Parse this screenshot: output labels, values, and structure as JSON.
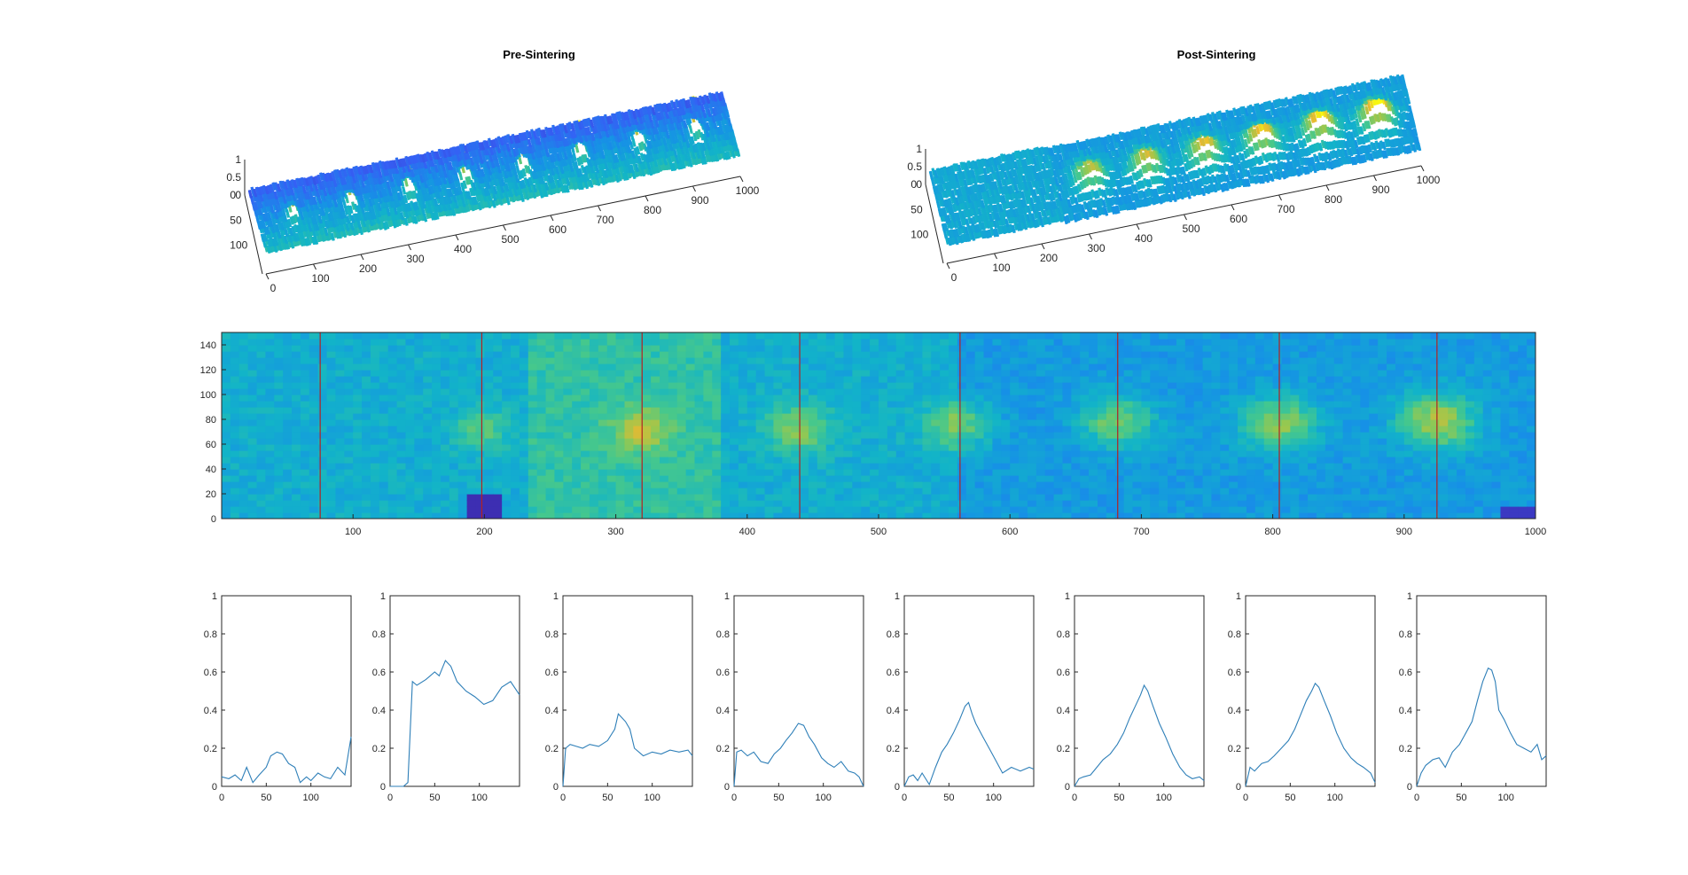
{
  "figure": {
    "titles": [
      "Pre-Sintering",
      "Post-Sintering"
    ]
  },
  "chart_data": [
    {
      "type": "surface",
      "title": "Pre-Sintering",
      "x_ticks": [
        0,
        100,
        200,
        300,
        400,
        500,
        600,
        700,
        800,
        900,
        1000
      ],
      "y_ticks": [
        0,
        50,
        100
      ],
      "z_ticks": [
        0,
        0.5,
        1
      ],
      "xlim": [
        0,
        1000
      ],
      "ylim": [
        0,
        150
      ],
      "zlim": [
        0,
        1
      ],
      "peaks_x": [
        75,
        198,
        320,
        440,
        562,
        682,
        805,
        925
      ],
      "peak_heights": [
        0.55,
        0.6,
        0.75,
        0.85,
        0.8,
        0.9,
        0.85,
        0.95
      ],
      "colormap": "parula"
    },
    {
      "type": "surface",
      "title": "Post-Sintering",
      "x_ticks": [
        0,
        100,
        200,
        300,
        400,
        500,
        600,
        700,
        800,
        900,
        1000
      ],
      "y_ticks": [
        0,
        50,
        100
      ],
      "z_ticks": [
        0,
        0.5,
        1
      ],
      "xlim": [
        0,
        1000
      ],
      "ylim": [
        0,
        150
      ],
      "zlim": [
        0,
        1
      ],
      "peaks_x": [
        320,
        440,
        562,
        682,
        805,
        925
      ],
      "peak_heights": [
        0.45,
        0.5,
        0.55,
        0.6,
        0.65,
        0.7
      ],
      "colormap": "parula"
    },
    {
      "type": "heatmap",
      "title": "",
      "xlim": [
        0,
        1000
      ],
      "ylim": [
        0,
        150
      ],
      "x_ticks": [
        100,
        200,
        300,
        400,
        500,
        600,
        700,
        800,
        900,
        1000
      ],
      "y_ticks": [
        0,
        20,
        40,
        60,
        80,
        100,
        120,
        140
      ],
      "colormap": "parula",
      "base_level": 0.42,
      "spots": [
        {
          "x": 198,
          "y": 72,
          "amp": 0.22,
          "r": 14
        },
        {
          "x": 320,
          "y": 72,
          "amp": 0.26,
          "r": 15
        },
        {
          "x": 440,
          "y": 73,
          "amp": 0.28,
          "r": 17
        },
        {
          "x": 562,
          "y": 76,
          "amp": 0.3,
          "r": 17
        },
        {
          "x": 682,
          "y": 78,
          "amp": 0.34,
          "r": 18
        },
        {
          "x": 805,
          "y": 77,
          "amp": 0.38,
          "r": 19
        },
        {
          "x": 925,
          "y": 79,
          "amp": 0.42,
          "r": 20
        }
      ],
      "vertical_lines_x": [
        75,
        198,
        320,
        440,
        562,
        682,
        805,
        925
      ],
      "line_color": "#b22222"
    },
    {
      "type": "line",
      "panels": [
        {
          "x": [
            0,
            8,
            15,
            22,
            28,
            35,
            42,
            50,
            55,
            62,
            68,
            75,
            82,
            88,
            95,
            100,
            108,
            115,
            122,
            130,
            138,
            145
          ],
          "y": [
            0.05,
            0.04,
            0.06,
            0.03,
            0.1,
            0.02,
            0.06,
            0.1,
            0.16,
            0.18,
            0.17,
            0.12,
            0.1,
            0.02,
            0.05,
            0.03,
            0.07,
            0.05,
            0.04,
            0.1,
            0.06,
            0.26
          ]
        },
        {
          "x": [
            0,
            5,
            10,
            15,
            20,
            25,
            30,
            40,
            50,
            55,
            62,
            68,
            75,
            85,
            95,
            105,
            115,
            125,
            135,
            145
          ],
          "y": [
            0,
            0,
            0,
            0,
            0.02,
            0.55,
            0.53,
            0.56,
            0.6,
            0.58,
            0.66,
            0.63,
            0.55,
            0.5,
            0.47,
            0.43,
            0.45,
            0.52,
            0.55,
            0.48
          ]
        },
        {
          "x": [
            0,
            3,
            8,
            15,
            22,
            30,
            40,
            50,
            58,
            62,
            66,
            70,
            75,
            80,
            90,
            100,
            110,
            120,
            130,
            140,
            145
          ],
          "y": [
            0,
            0.2,
            0.22,
            0.21,
            0.2,
            0.22,
            0.21,
            0.24,
            0.3,
            0.38,
            0.36,
            0.34,
            0.3,
            0.2,
            0.16,
            0.18,
            0.17,
            0.19,
            0.18,
            0.19,
            0.16
          ]
        },
        {
          "x": [
            0,
            3,
            8,
            15,
            22,
            30,
            38,
            45,
            52,
            58,
            65,
            72,
            78,
            84,
            90,
            98,
            105,
            112,
            120,
            128,
            135,
            140,
            145
          ],
          "y": [
            0,
            0.18,
            0.19,
            0.16,
            0.18,
            0.13,
            0.12,
            0.17,
            0.2,
            0.24,
            0.28,
            0.33,
            0.32,
            0.26,
            0.22,
            0.15,
            0.12,
            0.1,
            0.13,
            0.08,
            0.07,
            0.05,
            0
          ]
        },
        {
          "x": [
            0,
            5,
            10,
            15,
            20,
            28,
            35,
            42,
            48,
            55,
            62,
            68,
            72,
            76,
            80,
            88,
            95,
            102,
            110,
            120,
            130,
            140,
            145
          ],
          "y": [
            0,
            0.05,
            0.06,
            0.03,
            0.07,
            0.01,
            0.1,
            0.18,
            0.22,
            0.28,
            0.35,
            0.42,
            0.44,
            0.38,
            0.33,
            0.26,
            0.2,
            0.14,
            0.07,
            0.1,
            0.08,
            0.1,
            0.09
          ]
        },
        {
          "x": [
            0,
            5,
            10,
            18,
            25,
            32,
            40,
            48,
            55,
            62,
            68,
            74,
            78,
            82,
            88,
            95,
            102,
            110,
            118,
            125,
            132,
            140,
            145
          ],
          "y": [
            0,
            0.04,
            0.05,
            0.06,
            0.1,
            0.14,
            0.17,
            0.22,
            0.28,
            0.36,
            0.42,
            0.48,
            0.53,
            0.5,
            0.42,
            0.33,
            0.26,
            0.17,
            0.1,
            0.06,
            0.04,
            0.05,
            0.03
          ]
        },
        {
          "x": [
            0,
            5,
            10,
            18,
            25,
            32,
            40,
            48,
            55,
            62,
            68,
            74,
            78,
            82,
            88,
            95,
            102,
            110,
            118,
            125,
            132,
            140,
            145
          ],
          "y": [
            0,
            0.1,
            0.08,
            0.12,
            0.13,
            0.16,
            0.2,
            0.24,
            0.3,
            0.38,
            0.45,
            0.5,
            0.54,
            0.52,
            0.45,
            0.37,
            0.28,
            0.2,
            0.15,
            0.12,
            0.1,
            0.07,
            0.02
          ]
        },
        {
          "x": [
            0,
            5,
            10,
            18,
            25,
            32,
            40,
            48,
            55,
            62,
            68,
            74,
            80,
            84,
            88,
            92,
            98,
            105,
            112,
            120,
            128,
            135,
            140,
            145
          ],
          "y": [
            0,
            0.07,
            0.11,
            0.14,
            0.15,
            0.1,
            0.18,
            0.22,
            0.28,
            0.34,
            0.45,
            0.55,
            0.62,
            0.61,
            0.55,
            0.4,
            0.35,
            0.28,
            0.22,
            0.2,
            0.18,
            0.22,
            0.14,
            0.16
          ]
        }
      ],
      "xlim": [
        0,
        145
      ],
      "ylim": [
        0,
        1
      ],
      "x_ticks": [
        0,
        50,
        100
      ],
      "y_ticks": [
        0,
        0.2,
        0.4,
        0.6,
        0.8,
        1
      ],
      "line_color": "#2e7fb8"
    }
  ]
}
